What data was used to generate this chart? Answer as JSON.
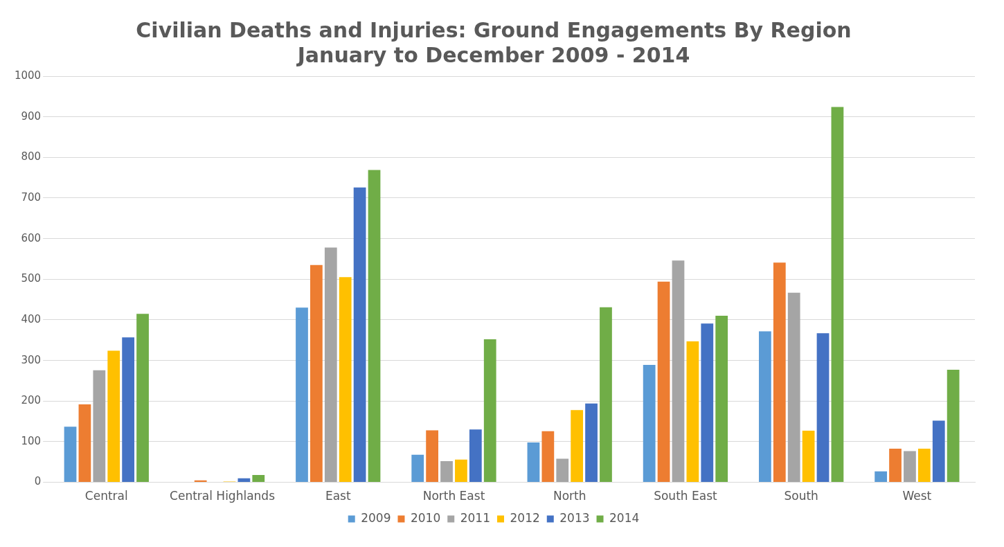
{
  "chart_data": {
    "type": "bar",
    "title": [
      "Civilian Deaths and Injuries: Ground Engagements By Region",
      "January to December 2009 - 2014"
    ],
    "categories": [
      "Central",
      "Central Highlands",
      "East",
      "North East",
      "North",
      "South East",
      "South",
      "West"
    ],
    "series": [
      {
        "name": "2009",
        "color": "#5b9bd5",
        "values": [
          137,
          0,
          430,
          68,
          98,
          289,
          372,
          27
        ]
      },
      {
        "name": "2010",
        "color": "#ed7d31",
        "values": [
          192,
          5,
          535,
          128,
          126,
          494,
          541,
          83
        ]
      },
      {
        "name": "2011",
        "color": "#a5a5a5",
        "values": [
          276,
          null,
          578,
          52,
          58,
          546,
          467,
          77
        ]
      },
      {
        "name": "2012",
        "color": "#ffc000",
        "values": [
          324,
          2,
          505,
          56,
          178,
          347,
          127,
          83
        ]
      },
      {
        "name": "2013",
        "color": "#4472c4",
        "values": [
          357,
          10,
          726,
          130,
          194,
          391,
          367,
          152
        ]
      },
      {
        "name": "2014",
        "color": "#70ad47",
        "values": [
          415,
          18,
          769,
          352,
          431,
          410,
          924,
          277
        ]
      }
    ],
    "ylim": [
      0,
      1000
    ],
    "yticks": [
      0,
      100,
      200,
      300,
      400,
      500,
      600,
      700,
      800,
      900,
      1000
    ],
    "grid": "y",
    "legend": "bottom"
  }
}
